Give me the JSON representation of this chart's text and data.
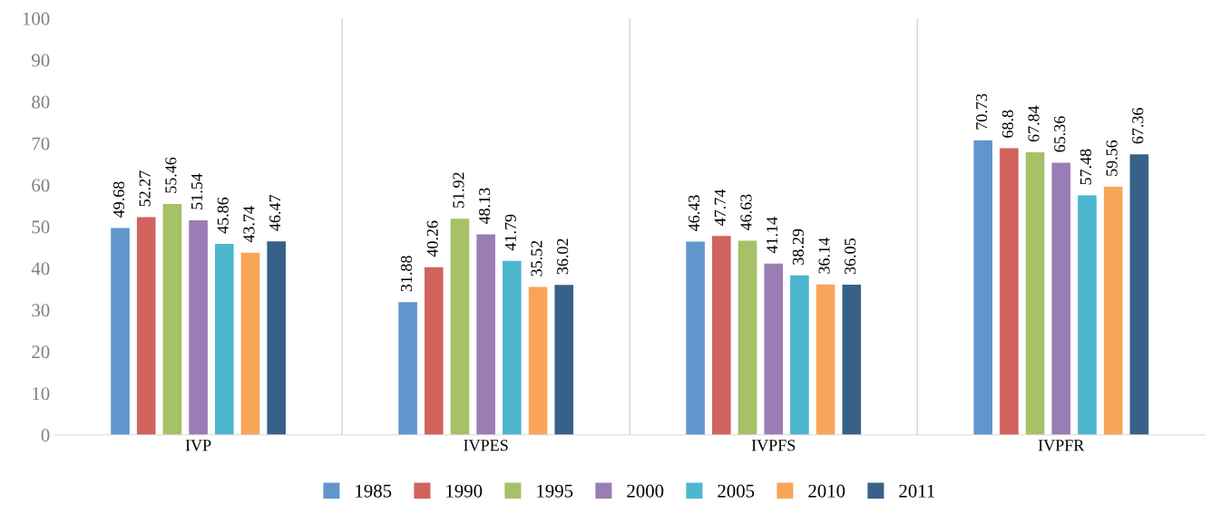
{
  "chart_data": {
    "type": "bar",
    "categories": [
      "IVP",
      "IVPES",
      "IVPFS",
      "IVPFR"
    ],
    "series": [
      {
        "name": "1985",
        "color": "#6096cc",
        "values": [
          49.68,
          31.88,
          46.43,
          70.73
        ]
      },
      {
        "name": "1990",
        "color": "#d0635e",
        "values": [
          52.27,
          40.26,
          47.74,
          68.8
        ]
      },
      {
        "name": "1995",
        "color": "#a6c167",
        "values": [
          55.46,
          51.92,
          46.63,
          67.84
        ]
      },
      {
        "name": "2000",
        "color": "#9a7db5",
        "values": [
          51.54,
          48.13,
          41.14,
          65.36
        ]
      },
      {
        "name": "2005",
        "color": "#4db6cf",
        "values": [
          45.86,
          41.79,
          38.29,
          57.48
        ]
      },
      {
        "name": "2010",
        "color": "#f9a559",
        "values": [
          43.74,
          35.52,
          36.14,
          59.56
        ]
      },
      {
        "name": "2011",
        "color": "#376189",
        "values": [
          46.47,
          36.02,
          36.05,
          67.36
        ]
      }
    ],
    "ylim": [
      0,
      100
    ],
    "yticks": [
      0,
      10,
      20,
      30,
      40,
      50,
      60,
      70,
      80,
      90,
      100
    ],
    "grid": "x",
    "legend": "bottom",
    "data_labels": true
  }
}
